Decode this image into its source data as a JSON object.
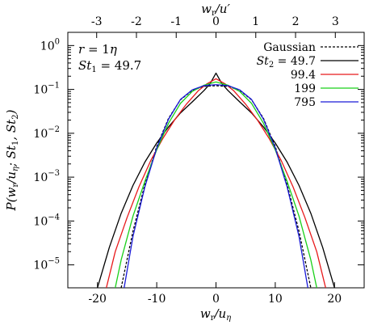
{
  "chart_data": {
    "type": "line",
    "xlabel": "w_r/u_η",
    "ylabel": "P(w_r/u_η; St_1, St_2)",
    "top_xlabel": "w_r/u'",
    "xlim": [
      -25,
      25
    ],
    "ylim": [
      3e-06,
      2
    ],
    "yscale": "log",
    "xticks": [
      -20,
      -10,
      0,
      10,
      20
    ],
    "xtick_labels": [
      "-20",
      "-10",
      "0",
      "10",
      "20"
    ],
    "top_xticks": [
      -3,
      -2,
      -1,
      0,
      1,
      2,
      3
    ],
    "top_xtick_labels": [
      "-3",
      "-2",
      "-1",
      "0",
      "1",
      "2",
      "3"
    ],
    "top_axis_scale": 0.149,
    "yticks": [
      1e-05,
      0.0001,
      0.001,
      0.01,
      0.1,
      1
    ],
    "ytick_labels": [
      {
        "base": "10",
        "exp": "−5"
      },
      {
        "base": "10",
        "exp": "−4"
      },
      {
        "base": "10",
        "exp": "−3"
      },
      {
        "base": "10",
        "exp": "−2"
      },
      {
        "base": "10",
        "exp": "−1"
      },
      {
        "base": "10",
        "exp": "0"
      }
    ],
    "annotations": [
      {
        "text": "r = 1η"
      },
      {
        "text": "St₁ = 49.7"
      }
    ],
    "legend_position": "top-right",
    "series": [
      {
        "name": "Gaussian",
        "color": "#000000",
        "dash": true,
        "x": [
          -16,
          -14,
          -12,
          -10,
          -8,
          -6,
          -4,
          -2,
          0,
          2,
          4,
          6,
          8,
          10,
          12,
          14,
          16
        ],
        "y": [
          3e-06,
          5.9e-05,
          0.00068,
          0.005,
          0.022,
          0.058,
          0.095,
          0.118,
          0.121,
          0.118,
          0.095,
          0.058,
          0.022,
          0.005,
          0.00068,
          5.9e-05,
          3e-06
        ]
      },
      {
        "name": "St₂ = 49.7",
        "color": "#000000",
        "dash": false,
        "x": [
          -20,
          -18,
          -16,
          -14,
          -12,
          -10,
          -8,
          -6,
          -4,
          -2,
          -1,
          0,
          1,
          2,
          4,
          6,
          8,
          10,
          12,
          14,
          16,
          18,
          20
        ],
        "y": [
          3e-06,
          2.5e-05,
          0.00015,
          0.00065,
          0.0022,
          0.006,
          0.014,
          0.029,
          0.052,
          0.095,
          0.135,
          0.235,
          0.135,
          0.095,
          0.052,
          0.029,
          0.014,
          0.006,
          0.0022,
          0.00065,
          0.00015,
          2.5e-05,
          3e-06
        ]
      },
      {
        "name": "99.4",
        "color": "#e8191b",
        "dash": false,
        "x": [
          -18.5,
          -17,
          -15,
          -13,
          -11,
          -9,
          -7,
          -5,
          -3,
          -1.5,
          0,
          1.5,
          3,
          5,
          7,
          9,
          11,
          13,
          15,
          17,
          18.5
        ],
        "y": [
          3e-06,
          2e-05,
          0.00012,
          0.0006,
          0.0024,
          0.0075,
          0.02,
          0.046,
          0.093,
          0.135,
          0.175,
          0.135,
          0.093,
          0.046,
          0.02,
          0.0075,
          0.0024,
          0.0006,
          0.00012,
          2e-05,
          3e-06
        ]
      },
      {
        "name": "199",
        "color": "#19d019",
        "dash": false,
        "x": [
          -17,
          -16,
          -14,
          -12,
          -10,
          -8,
          -6,
          -4,
          -2,
          0,
          2,
          4,
          6,
          8,
          10,
          12,
          14,
          16,
          17
        ],
        "y": [
          3e-06,
          1.3e-05,
          0.00013,
          0.0008,
          0.0042,
          0.017,
          0.048,
          0.09,
          0.125,
          0.148,
          0.125,
          0.09,
          0.048,
          0.017,
          0.0042,
          0.0008,
          0.00013,
          1.3e-05,
          3e-06
        ]
      },
      {
        "name": "795",
        "color": "#1a1ad8",
        "dash": false,
        "x": [
          -15.5,
          -14,
          -12,
          -10,
          -8,
          -6,
          -4,
          -2,
          0,
          2,
          4,
          6,
          8,
          10,
          12,
          14,
          15.5
        ],
        "y": [
          3e-06,
          4.5e-05,
          0.0006,
          0.0046,
          0.021,
          0.059,
          0.098,
          0.122,
          0.128,
          0.122,
          0.098,
          0.059,
          0.021,
          0.0046,
          0.0006,
          4.5e-05,
          3e-06
        ]
      }
    ]
  }
}
